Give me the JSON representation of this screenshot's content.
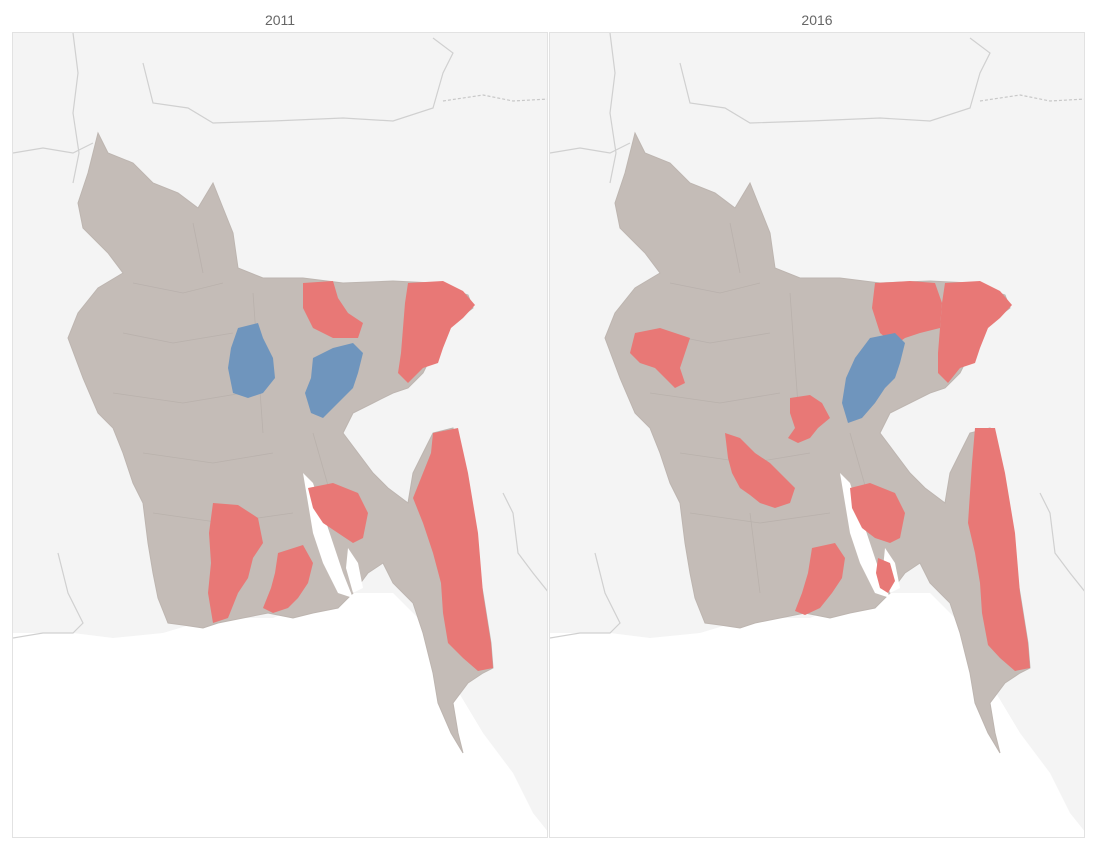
{
  "panels": [
    {
      "title": "2011",
      "highlighted_regions": [
        {
          "name": "sunamganj",
          "status": "high"
        },
        {
          "name": "netrokona",
          "status": "high"
        },
        {
          "name": "satkhira",
          "status": "high"
        },
        {
          "name": "khulna",
          "status": "high"
        },
        {
          "name": "barisal",
          "status": "high"
        },
        {
          "name": "patuakhali",
          "status": "high"
        },
        {
          "name": "chittagong-hill-tracts",
          "status": "high"
        },
        {
          "name": "tangail",
          "status": "low"
        },
        {
          "name": "dhaka-gazipur",
          "status": "low"
        }
      ]
    },
    {
      "title": "2016",
      "highlighted_regions": [
        {
          "name": "sunamganj",
          "status": "high"
        },
        {
          "name": "sylhet",
          "status": "high"
        },
        {
          "name": "chapainawabganj",
          "status": "high"
        },
        {
          "name": "manikganj",
          "status": "high"
        },
        {
          "name": "kushtia-jhenaidah",
          "status": "high"
        },
        {
          "name": "bagerhat-barguna",
          "status": "high"
        },
        {
          "name": "barisal",
          "status": "high"
        },
        {
          "name": "bandarban-cox",
          "status": "high"
        },
        {
          "name": "dhaka-gazipur",
          "status": "low"
        }
      ]
    }
  ],
  "colors": {
    "background": "#f4f4f4",
    "land": "#c4bcb7",
    "neighbor_border": "#cfcfcf",
    "high": "#e87876",
    "low": "#6f95bd",
    "water": "#ffffff"
  }
}
